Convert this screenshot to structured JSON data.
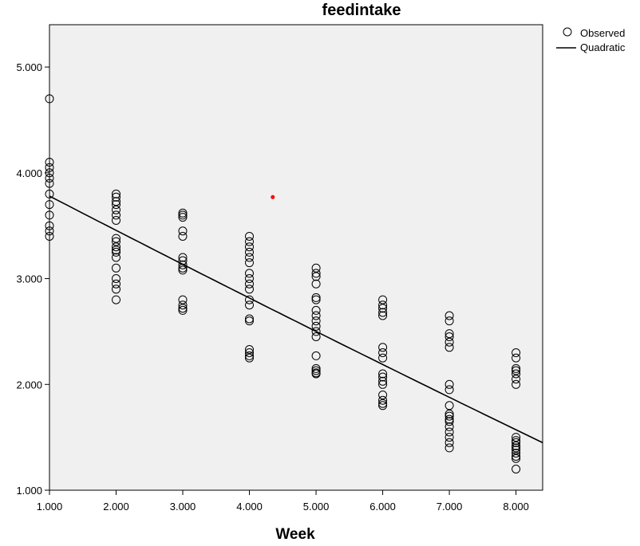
{
  "chart_data": {
    "type": "scatter",
    "title": "feedintake",
    "xlabel": "Week",
    "ylabel": "",
    "xlim": [
      1.0,
      8.4
    ],
    "ylim": [
      1.0,
      5.4
    ],
    "x_ticks": [
      "1.000",
      "2.000",
      "3.000",
      "4.000",
      "5.000",
      "6.000",
      "7.000",
      "8.000"
    ],
    "y_ticks": [
      "1.000",
      "2.000",
      "3.000",
      "4.000",
      "5.000"
    ],
    "x_tick_values": [
      1,
      2,
      3,
      4,
      5,
      6,
      7,
      8
    ],
    "y_tick_values": [
      1,
      2,
      3,
      4,
      5
    ],
    "grid": false,
    "legend_position": "top-right outside",
    "colors": {
      "plot_background": "#f0f0f0",
      "marker": "#000000",
      "line": "#000000",
      "stray_dot": "#ff0000"
    },
    "series": [
      {
        "name": "Observed",
        "kind": "scatter",
        "points": [
          [
            1,
            4.7
          ],
          [
            1,
            4.1
          ],
          [
            1,
            4.05
          ],
          [
            1,
            4.0
          ],
          [
            1,
            3.95
          ],
          [
            1,
            3.9
          ],
          [
            1,
            3.8
          ],
          [
            1,
            3.7
          ],
          [
            1,
            3.6
          ],
          [
            1,
            3.5
          ],
          [
            1,
            3.45
          ],
          [
            1,
            3.4
          ],
          [
            2,
            3.8
          ],
          [
            2,
            3.77
          ],
          [
            2,
            3.73
          ],
          [
            2,
            3.7
          ],
          [
            2,
            3.65
          ],
          [
            2,
            3.6
          ],
          [
            2,
            3.55
          ],
          [
            2,
            3.38
          ],
          [
            2,
            3.35
          ],
          [
            2,
            3.3
          ],
          [
            2,
            3.27
          ],
          [
            2,
            3.25
          ],
          [
            2,
            3.2
          ],
          [
            2,
            3.1
          ],
          [
            2,
            3.0
          ],
          [
            2,
            2.95
          ],
          [
            2,
            2.9
          ],
          [
            2,
            2.8
          ],
          [
            3,
            3.62
          ],
          [
            3,
            3.6
          ],
          [
            3,
            3.58
          ],
          [
            3,
            3.45
          ],
          [
            3,
            3.4
          ],
          [
            3,
            3.2
          ],
          [
            3,
            3.17
          ],
          [
            3,
            3.13
          ],
          [
            3,
            3.1
          ],
          [
            3,
            3.08
          ],
          [
            3,
            2.8
          ],
          [
            3,
            2.75
          ],
          [
            3,
            2.72
          ],
          [
            3,
            2.7
          ],
          [
            4,
            3.4
          ],
          [
            4,
            3.35
          ],
          [
            4,
            3.3
          ],
          [
            4,
            3.25
          ],
          [
            4,
            3.2
          ],
          [
            4,
            3.15
          ],
          [
            4,
            3.05
          ],
          [
            4,
            3.0
          ],
          [
            4,
            2.95
          ],
          [
            4,
            2.9
          ],
          [
            4,
            2.8
          ],
          [
            4,
            2.75
          ],
          [
            4,
            2.62
          ],
          [
            4,
            2.6
          ],
          [
            4,
            2.33
          ],
          [
            4,
            2.3
          ],
          [
            4,
            2.27
          ],
          [
            4,
            2.25
          ],
          [
            5,
            3.1
          ],
          [
            5,
            3.05
          ],
          [
            5,
            3.02
          ],
          [
            5,
            2.95
          ],
          [
            5,
            2.82
          ],
          [
            5,
            2.8
          ],
          [
            5,
            2.7
          ],
          [
            5,
            2.65
          ],
          [
            5,
            2.6
          ],
          [
            5,
            2.55
          ],
          [
            5,
            2.5
          ],
          [
            5,
            2.45
          ],
          [
            5,
            2.27
          ],
          [
            5,
            2.15
          ],
          [
            5,
            2.13
          ],
          [
            5,
            2.11
          ],
          [
            5,
            2.1
          ],
          [
            6,
            2.8
          ],
          [
            6,
            2.75
          ],
          [
            6,
            2.72
          ],
          [
            6,
            2.68
          ],
          [
            6,
            2.65
          ],
          [
            6,
            2.35
          ],
          [
            6,
            2.3
          ],
          [
            6,
            2.25
          ],
          [
            6,
            2.1
          ],
          [
            6,
            2.07
          ],
          [
            6,
            2.03
          ],
          [
            6,
            2.0
          ],
          [
            6,
            1.9
          ],
          [
            6,
            1.85
          ],
          [
            6,
            1.82
          ],
          [
            6,
            1.8
          ],
          [
            7,
            2.65
          ],
          [
            7,
            2.6
          ],
          [
            7,
            2.48
          ],
          [
            7,
            2.45
          ],
          [
            7,
            2.4
          ],
          [
            7,
            2.35
          ],
          [
            7,
            2.0
          ],
          [
            7,
            1.95
          ],
          [
            7,
            1.8
          ],
          [
            7,
            1.72
          ],
          [
            7,
            1.7
          ],
          [
            7,
            1.67
          ],
          [
            7,
            1.65
          ],
          [
            7,
            1.6
          ],
          [
            7,
            1.55
          ],
          [
            7,
            1.5
          ],
          [
            7,
            1.45
          ],
          [
            7,
            1.4
          ],
          [
            8,
            2.3
          ],
          [
            8,
            2.25
          ],
          [
            8,
            2.15
          ],
          [
            8,
            2.13
          ],
          [
            8,
            2.1
          ],
          [
            8,
            2.05
          ],
          [
            8,
            2.0
          ],
          [
            8,
            1.5
          ],
          [
            8,
            1.47
          ],
          [
            8,
            1.45
          ],
          [
            8,
            1.42
          ],
          [
            8,
            1.4
          ],
          [
            8,
            1.38
          ],
          [
            8,
            1.35
          ],
          [
            8,
            1.32
          ],
          [
            8,
            1.3
          ],
          [
            8,
            1.2
          ]
        ]
      },
      {
        "name": "Quadratic",
        "kind": "line",
        "coefficients": {
          "a": 4.107,
          "b": -0.3282,
          "c": 0.0014
        }
      }
    ],
    "annotations": [
      {
        "kind": "stray-dot",
        "x": 4.35,
        "y": 3.77
      }
    ]
  }
}
